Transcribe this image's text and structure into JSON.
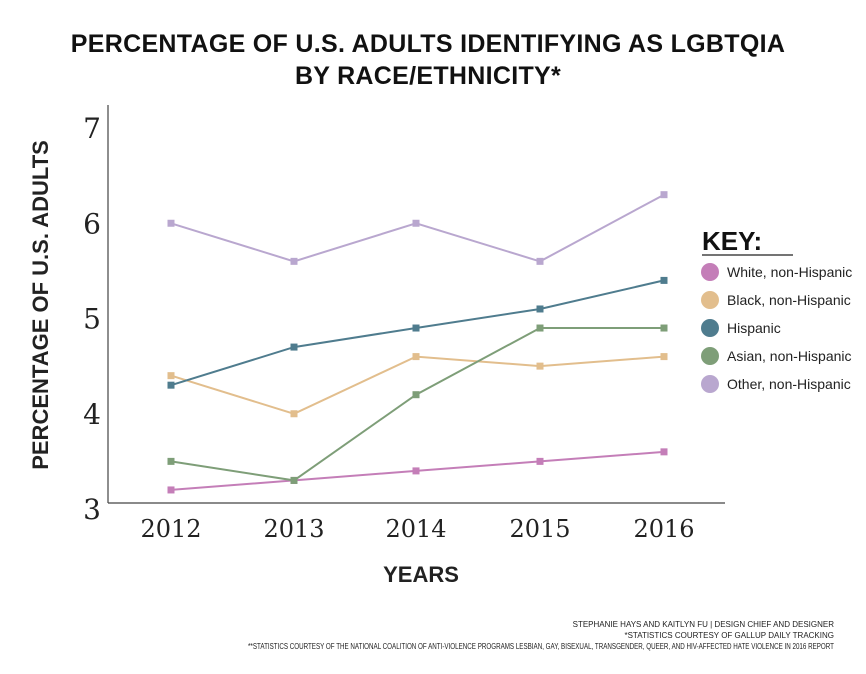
{
  "chart_data": {
    "type": "line",
    "title": "PERCENTAGE OF U.S. ADULTS IDENTIFYING AS LGBTQIA",
    "subtitle": "BY RACE/ETHNICITY*",
    "xlabel": "YEARS",
    "ylabel": "PERCENTAGE OF U.S. ADULTS",
    "x": [
      "2012",
      "2013",
      "2014",
      "2015",
      "2016"
    ],
    "ylim": [
      3,
      7
    ],
    "yticks": [
      "3",
      "4",
      "5",
      "6",
      "7"
    ],
    "grid": false,
    "legend_title": "KEY:",
    "legend_position": "right",
    "series": [
      {
        "name": "White, non-Hispanic",
        "color": "#c47eb8",
        "values": [
          3.2,
          3.3,
          3.4,
          3.5,
          3.6
        ]
      },
      {
        "name": "Black, non-Hispanic",
        "color": "#e2be8d",
        "values": [
          4.4,
          4.0,
          4.6,
          4.5,
          4.6
        ]
      },
      {
        "name": "Hispanic",
        "color": "#4f7c8e",
        "values": [
          4.3,
          4.7,
          4.9,
          5.1,
          5.4
        ]
      },
      {
        "name": "Asian, non-Hispanic",
        "color": "#7e9e78",
        "values": [
          3.5,
          3.3,
          4.2,
          4.9,
          4.9
        ]
      },
      {
        "name": "Other, non-Hispanic",
        "color": "#b9a7cf",
        "values": [
          6.0,
          5.6,
          6.0,
          5.6,
          6.3
        ]
      }
    ]
  },
  "credits": [
    "STEPHANIE HAYS AND KAITLYN FU | DESIGN CHIEF AND DESIGNER",
    "*STATISTICS COURTESY OF GALLUP DAILY TRACKING",
    "**STATISTICS COURTESY OF THE NATIONAL COALITION OF ANTI-VIOLENCE PROGRAMS LESBIAN, GAY, BISEXUAL, TRANSGENDER, QUEER, AND HIV-AFFECTED HATE VIOLENCE IN 2016 REPORT"
  ]
}
